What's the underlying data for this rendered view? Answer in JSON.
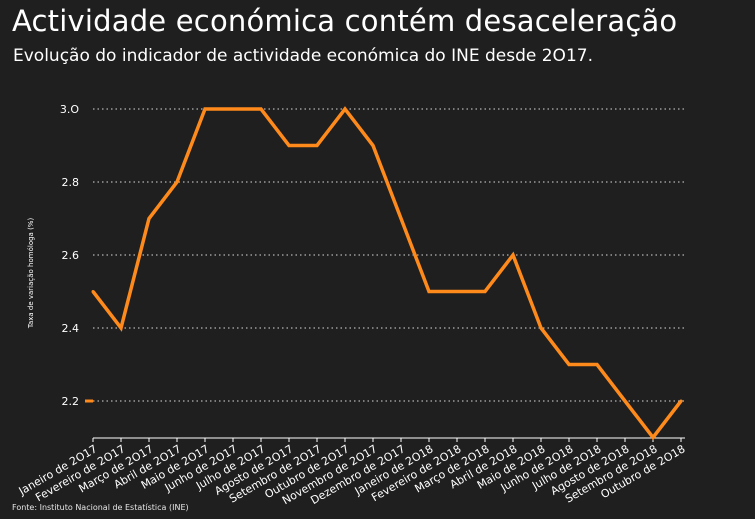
{
  "title": "Actividade económica contém desaceleração",
  "subtitle": "Evolução do indicador de actividade económica do INE desde 2O17.",
  "source": "Fonte: Instituto Nacional de Estatística (INE)",
  "colors": {
    "line": "#ff8a1c",
    "background": "#1f1f1f",
    "grid": "#d9d9d9"
  },
  "chart_data": {
    "type": "line",
    "ylabel": "Taxa de variação homóloga (%)",
    "ylim": [
      2.1,
      3.0
    ],
    "yticks": [
      "2.2",
      "2.4",
      "2.6",
      "2.8",
      "3.O"
    ],
    "ytick_values": [
      2.2,
      2.4,
      2.6,
      2.8,
      3.0
    ],
    "grid": "horizontal dotted",
    "categories": [
      "Janeiro de 2O17",
      "Fevereiro de 2O17",
      "Março de 2O17",
      "Abril de 2O17",
      "Maio de 2O17",
      "Junho de 2O17",
      "Julho de 2O17",
      "Agosto de 2O17",
      "Setembro de 2O17",
      "Outubro de 2O17",
      "Novembro de 2O17",
      "Dezembro de 2O17",
      "Janeiro de 2O18",
      "Fevereiro de 2O18",
      "Março de 2O18",
      "Abril de 2O18",
      "Maio de 2O18",
      "Junho de 2O18",
      "Julho de 2O18",
      "Agosto de 2O18",
      "Setembro de 2O18",
      "Outubro de 2O18"
    ],
    "series": [
      {
        "values": [
          2.5,
          2.4,
          2.7,
          2.8,
          3.0,
          3.0,
          3.0,
          2.9,
          2.9,
          3.0,
          2.9,
          2.7,
          2.5,
          2.5,
          2.5,
          2.6,
          2.4,
          2.3,
          2.3,
          2.2,
          2.1,
          2.2
        ]
      }
    ]
  }
}
